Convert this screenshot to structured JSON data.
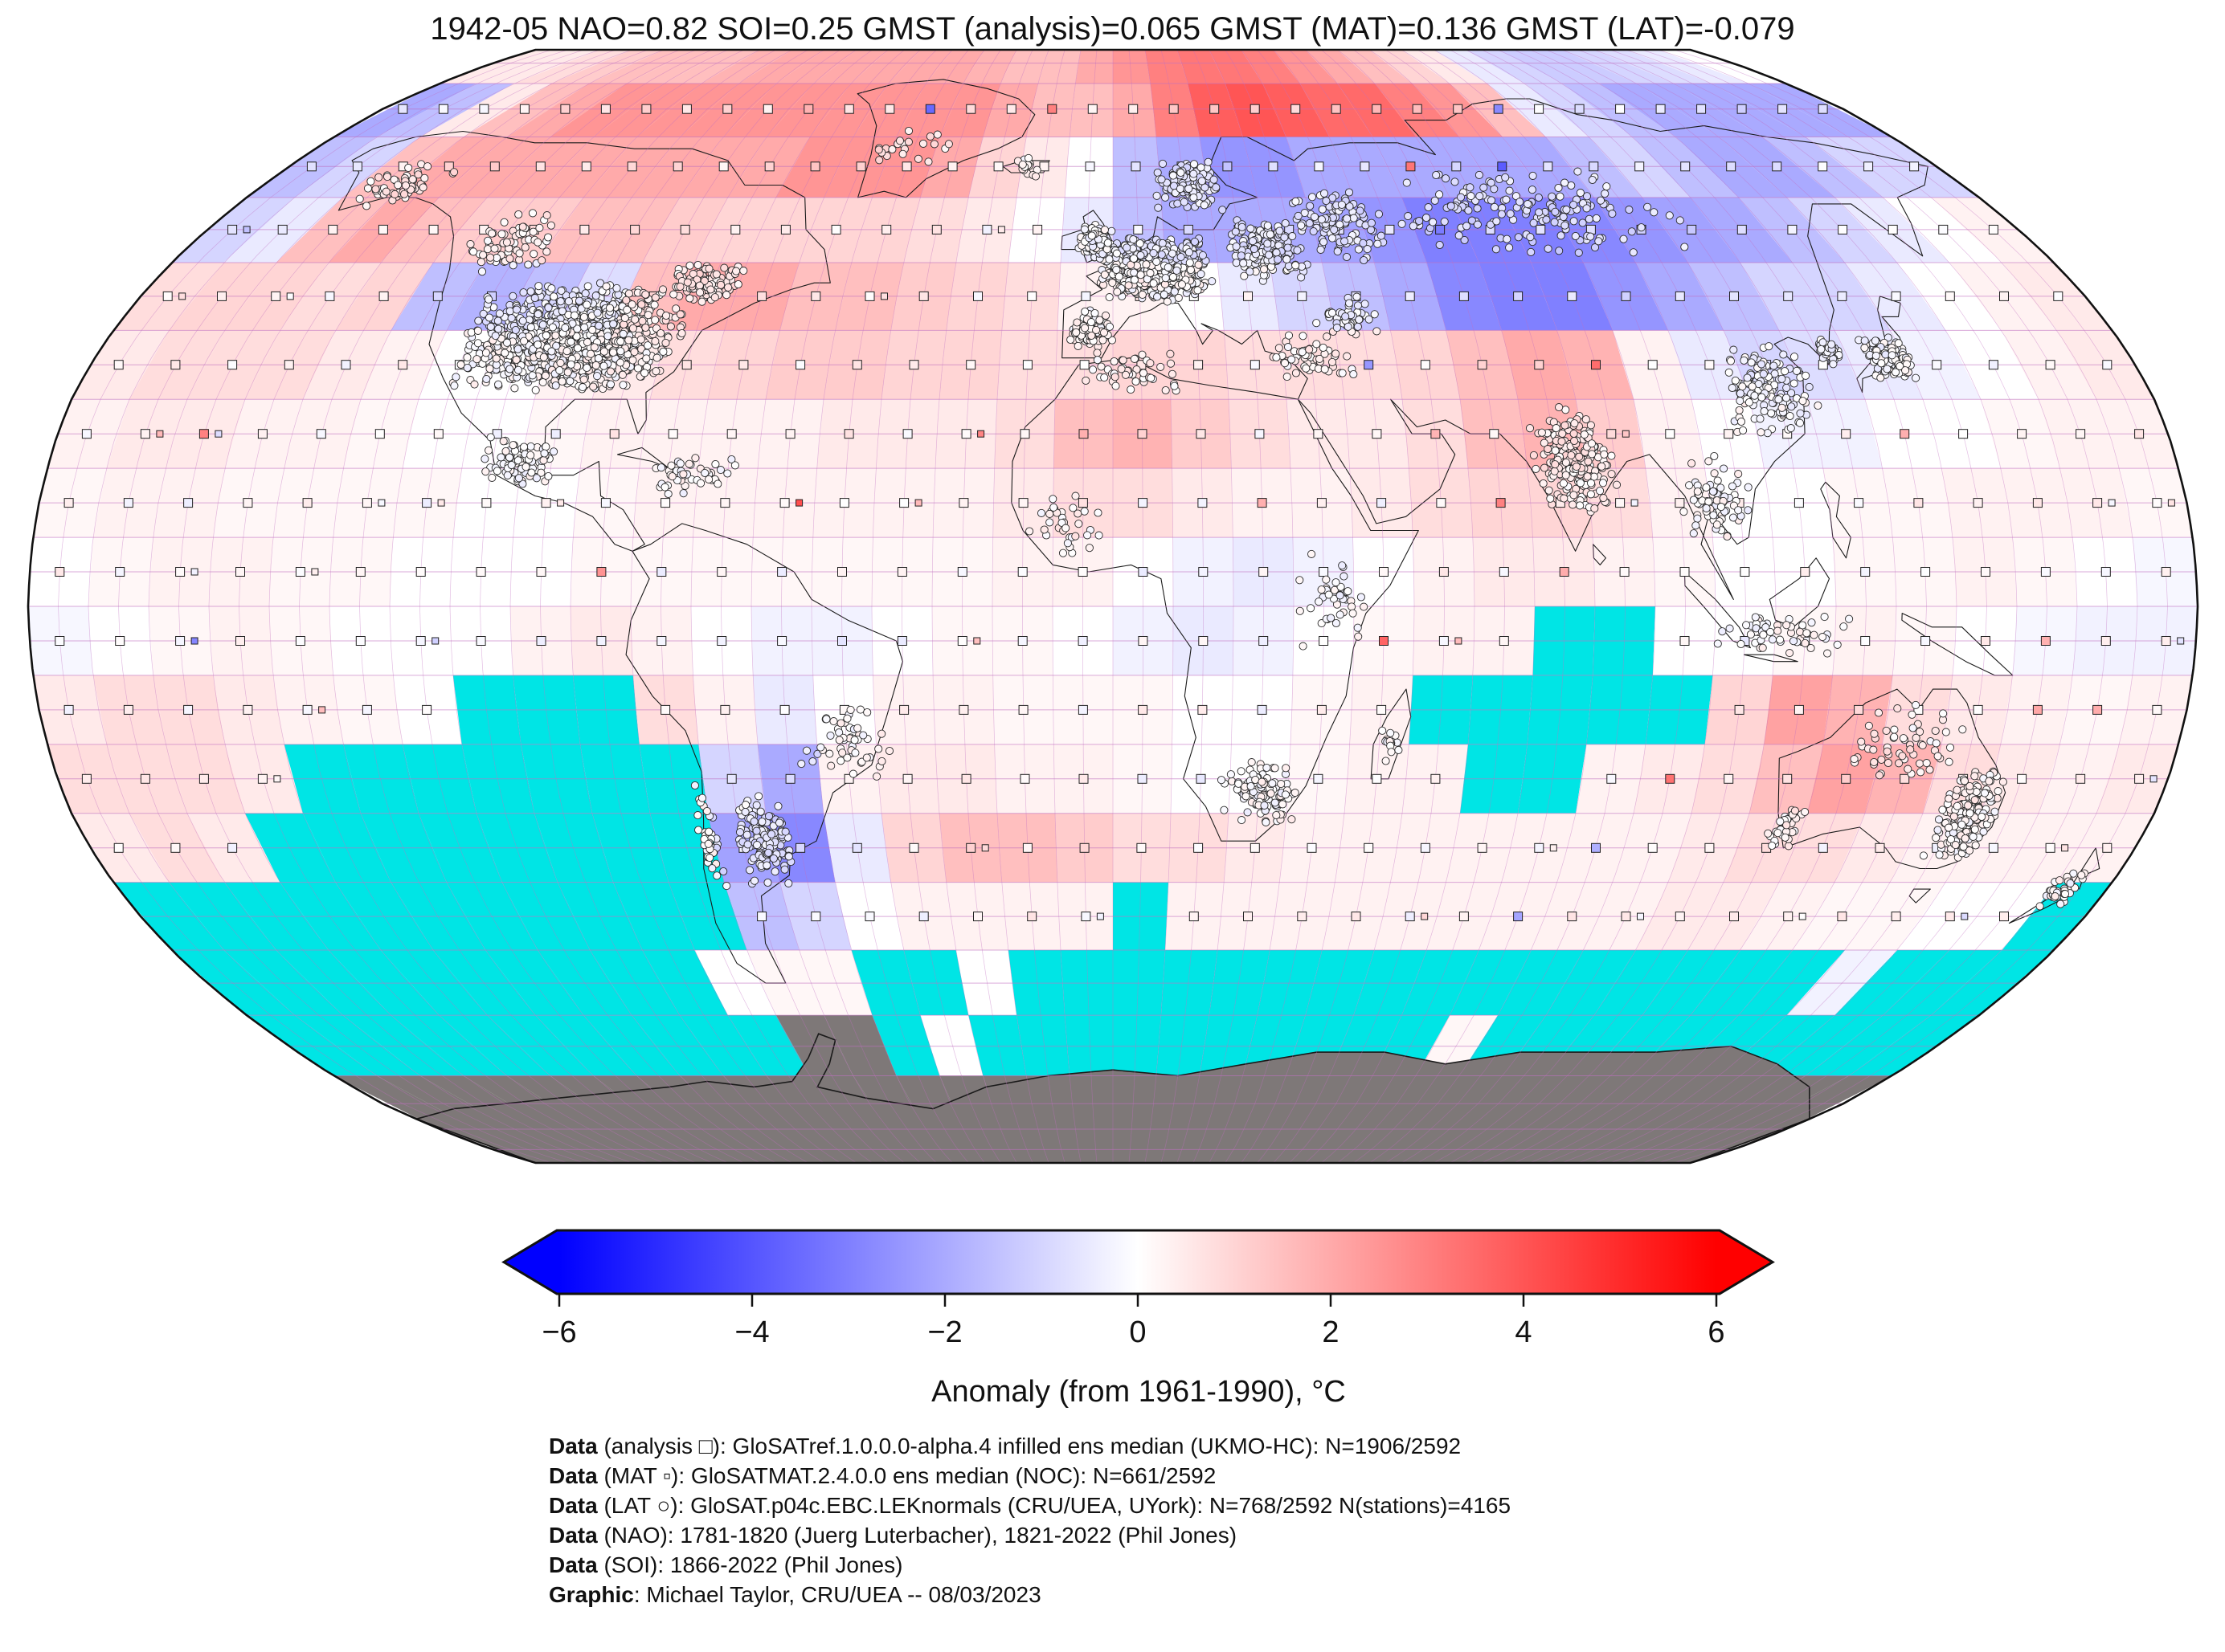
{
  "title": "1942-05 NAO=0.82 SOI=0.25 GMST (analysis)=0.065 GMST (MAT)=0.136 GMST (LAT)=-0.079",
  "colorbar": {
    "label": "Anomaly (from 1961-1990), °C",
    "ticks": [
      -6,
      -4,
      -2,
      0,
      2,
      4,
      6
    ],
    "vmin": -6,
    "vmax": 6,
    "color_negative": "#0000ff",
    "color_zero": "#ffffff",
    "color_positive": "#ff0000",
    "color_missing": "#00e5e5",
    "color_antarctica": "#7e7878"
  },
  "caption": {
    "lines": [
      {
        "bold": "Data",
        "rest": " (analysis □): GloSATref.1.0.0.0-alpha.4 infilled ens median (UKMO-HC): N=1906/2592"
      },
      {
        "bold": "Data",
        "rest": " (MAT ▫): GloSATMAT.2.4.0.0 ens median (NOC): N=661/2592"
      },
      {
        "bold": "Data",
        "rest": " (LAT ○): GloSAT.p04c.EBC.LEKnormals (CRU/UEA, UYork): N=768/2592 N(stations)=4165"
      },
      {
        "bold": "Data",
        "rest": " (NAO): 1781-1820 (Juerg Luterbacher), 1821-2022 (Phil Jones)"
      },
      {
        "bold": "Data",
        "rest": " (SOI): 1866-2022 (Phil Jones)"
      },
      {
        "bold": "Graphic",
        "rest": ": Michael Taylor, CRU/UEA -- 08/03/2023"
      }
    ]
  },
  "chart_data": {
    "type": "heatmap",
    "subtype": "global-temperature-anomaly-map",
    "projection": "robinson",
    "period": "1942-05",
    "indices": {
      "NAO": 0.82,
      "SOI": 0.25
    },
    "gmst": {
      "analysis": 0.065,
      "MAT": 0.136,
      "LAT": -0.079
    },
    "counts": {
      "analysis": "1906/2592",
      "MAT": "661/2592",
      "LAT": "768/2592",
      "stations": 4165
    },
    "graticule_deg": 5,
    "colors": {
      "graticule": "#c06fc0",
      "coastline": "#1a1a1a",
      "outline": "#111111"
    },
    "anomaly_grid": {
      "lat_start": 85,
      "lat_step": -10,
      "lon_start": -175,
      "lon_step": 10,
      "missing_code": "m",
      "antarctica_code": "g",
      "rows": [
        [
          0.5,
          0.5,
          0.8,
          1.2,
          1.5,
          1.5,
          1.5,
          1.8,
          2,
          2,
          2,
          2,
          2,
          2,
          1.8,
          1.5,
          1.5,
          2,
          2.5,
          3,
          3.2,
          3.2,
          3,
          2.5,
          2,
          1.5,
          1,
          0.5,
          -0.5,
          -1,
          -1.2,
          -1.2,
          -1,
          -0.8,
          -0.5,
          0
        ],
        [
          -2,
          -1.5,
          0.5,
          1.5,
          2,
          2.5,
          2.5,
          2.5,
          2.5,
          2.5,
          2.5,
          2.5,
          2.5,
          2.5,
          2.5,
          2,
          1.5,
          1.5,
          2,
          3,
          3.8,
          4,
          3.8,
          3.5,
          3.5,
          3,
          2.5,
          1.5,
          -0.5,
          -1,
          -1.5,
          -2,
          -2,
          -2,
          -2,
          -2
        ],
        [
          -1.5,
          -1,
          1.5,
          2,
          2,
          2,
          2,
          2,
          2,
          2,
          2,
          2.5,
          2.5,
          2.5,
          2,
          1,
          0.5,
          0,
          -1.5,
          -2,
          -2.5,
          -2.5,
          -2,
          -2,
          -2,
          -2,
          -2,
          -2,
          -1.5,
          -1,
          -1.5,
          -2,
          -2,
          -1.5,
          -1,
          -1
        ],
        [
          -1,
          -0.5,
          1.5,
          2,
          1.5,
          1.2,
          1.2,
          1.5,
          1.5,
          1.2,
          1,
          1,
          1,
          1,
          0.8,
          0.5,
          0,
          -0.5,
          -1.5,
          -2,
          -2,
          -2,
          -2.2,
          -2.5,
          -3,
          -3,
          -3,
          -2.8,
          -2.5,
          -2.2,
          -2,
          -1.5,
          -1,
          -0.5,
          0,
          0.3
        ],
        [
          0.8,
          1,
          1,
          0.8,
          1,
          -1.5,
          -1.8,
          -1.5,
          -0.8,
          1.5,
          2,
          2,
          1.5,
          1.5,
          1.2,
          1,
          0.8,
          0.3,
          0.3,
          0,
          -0.5,
          -1,
          -1.5,
          -2,
          -2.8,
          -3,
          -3,
          -2.5,
          -2,
          -1.5,
          -1,
          -1,
          -0.5,
          0,
          0.3,
          0.5
        ],
        [
          0.5,
          0.8,
          0.8,
          0.8,
          0.5,
          0.3,
          0,
          0,
          0.3,
          0.5,
          0.8,
          1,
          1.2,
          1.2,
          1,
          1,
          0.8,
          0.8,
          1,
          1,
          0.8,
          0.8,
          0.8,
          1,
          1.5,
          2,
          1.8,
          0.3,
          -0.5,
          -1,
          -0.8,
          -0.5,
          -0.3,
          0,
          0.3,
          0.5
        ],
        [
          0.3,
          0.5,
          0.5,
          0.3,
          0.3,
          0.2,
          0,
          0,
          0.2,
          0.3,
          0.3,
          0.3,
          0.3,
          0.5,
          0.5,
          0.5,
          0.8,
          1.5,
          1.8,
          1.2,
          0.8,
          0.5,
          0.5,
          0.8,
          1.5,
          1.8,
          1.2,
          0.3,
          0,
          -0.3,
          -0.3,
          0,
          0,
          0.2,
          0.3,
          0.3
        ],
        [
          0.2,
          0.3,
          0.3,
          0.2,
          0.2,
          0.2,
          0.2,
          0,
          0,
          0.2,
          0.3,
          0.3,
          0.3,
          0.3,
          0.3,
          0.3,
          0.5,
          0.8,
          0.8,
          0.5,
          0.3,
          0.3,
          0.5,
          0.8,
          1,
          1,
          0.8,
          0.3,
          0,
          0,
          0.2,
          0.2,
          0.3,
          0.3,
          0.3,
          0.2
        ],
        [
          0,
          0.2,
          0.3,
          0.3,
          0.2,
          0.2,
          0,
          0,
          0,
          0.2,
          0.2,
          0.2,
          0.2,
          0.2,
          0.2,
          0.2,
          0.3,
          0.3,
          0,
          -0.3,
          -0.5,
          -0.3,
          0,
          0.3,
          0.5,
          0.5,
          0.3,
          0.2,
          0,
          0,
          0.2,
          0.2,
          0.3,
          0.2,
          0,
          -0.2
        ],
        [
          -0.2,
          0,
          0.2,
          0.3,
          0.2,
          0,
          0,
          0,
          0.3,
          0.5,
          0.3,
          0,
          -0.3,
          -0.3,
          0,
          0.2,
          0.2,
          0,
          -0.3,
          -0.5,
          -0.3,
          0,
          0.2,
          0.3,
          0.3,
          "m",
          "m",
          0,
          0,
          0.2,
          0.3,
          0.2,
          0,
          -0.2,
          -0.3,
          -0.3
        ],
        [
          0.5,
          0.8,
          0.8,
          0.5,
          0.3,
          0.2,
          0,
          "m",
          "m",
          "m",
          0.8,
          0.3,
          -0.5,
          0,
          0.3,
          0.3,
          0.2,
          0.2,
          0.2,
          0,
          0,
          0.2,
          0.3,
          "m",
          "m",
          "m",
          "m",
          "m",
          1,
          2.2,
          1.8,
          0.8,
          0.5,
          0.3,
          0.2,
          0.3
        ],
        [
          0.8,
          0.8,
          0.8,
          0.5,
          "m",
          "m",
          "m",
          "m",
          "m",
          "m",
          "m",
          -1,
          -2,
          0.3,
          0.5,
          0.5,
          0.3,
          0.3,
          0.2,
          0,
          0,
          0.2,
          0.3,
          0.3,
          "m",
          "m",
          0.3,
          0.5,
          0.8,
          1.5,
          2.2,
          1.8,
          0.8,
          0.5,
          0.3,
          0.5
        ],
        [
          0.5,
          0.8,
          0.5,
          "m",
          "m",
          "m",
          "m",
          "m",
          "m",
          "m",
          "m",
          -2.2,
          -2.8,
          -0.5,
          1,
          1.5,
          1.5,
          1.2,
          0.8,
          0.8,
          0.5,
          0.3,
          0.3,
          0.3,
          0.3,
          0.3,
          0.3,
          0.3,
          0.5,
          0.8,
          0.8,
          0.5,
          0.3,
          0.3,
          0.3,
          0.3
        ],
        [
          "m",
          "m",
          "m",
          "m",
          "m",
          "m",
          "m",
          "m",
          "m",
          "m",
          "m",
          -1.5,
          -1,
          0,
          0.3,
          0.3,
          0.3,
          0.3,
          "m",
          0.3,
          0.3,
          0.3,
          0.3,
          0.3,
          0.3,
          0.3,
          0.3,
          0.3,
          0.5,
          0.5,
          0.3,
          0.2,
          0.2,
          0,
          0,
          "m"
        ],
        [
          "m",
          "m",
          "m",
          "m",
          "m",
          "m",
          "m",
          "m",
          "m",
          "m",
          0,
          0.2,
          0.2,
          "m",
          "m",
          0,
          "m",
          "m",
          "m",
          "m",
          "m",
          "m",
          "m",
          "m",
          "m",
          "m",
          "m",
          "m",
          "m",
          "m",
          "m",
          "m",
          -0.3,
          "m",
          "m",
          "m"
        ],
        [
          "m",
          "m",
          "m",
          "m",
          "m",
          "m",
          "m",
          "m",
          "m",
          "m",
          "m",
          "g",
          "g",
          "m",
          0,
          "m",
          "m",
          "m",
          "m",
          "m",
          "m",
          "m",
          "m",
          "m",
          "m",
          0.2,
          "m",
          "m",
          "m",
          "m",
          "m",
          "m",
          "m",
          "m",
          "m",
          "m"
        ],
        [
          "g",
          "g",
          "g",
          "g",
          "g",
          "g",
          "g",
          "g",
          "g",
          "g",
          "g",
          "g",
          "g",
          "g",
          "g",
          "g",
          "g",
          "g",
          "g",
          "g",
          "g",
          "g",
          "g",
          "g",
          "g",
          "g",
          "g",
          "g",
          "g",
          "g",
          "g",
          "g",
          "g",
          "g",
          "g",
          "g"
        ],
        [
          "g",
          "g",
          "g",
          "g",
          "g",
          "g",
          "g",
          "g",
          "g",
          "g",
          "g",
          "g",
          "g",
          "g",
          "g",
          "g",
          "g",
          "g",
          "g",
          "g",
          "g",
          "g",
          "g",
          "g",
          "g",
          "g",
          "g",
          "g",
          "g",
          "g",
          "g",
          "g",
          "g",
          "g",
          "g",
          "g"
        ]
      ]
    },
    "station_clusters": {
      "fields": [
        "region",
        "lon",
        "lat",
        "lon_spread",
        "lat_spread",
        "count"
      ],
      "items": [
        [
          "us",
          -97,
          39,
          20,
          8,
          1200
        ],
        [
          "canada-east",
          -76,
          47,
          7,
          3,
          110
        ],
        [
          "canada-west",
          -118,
          53,
          10,
          5,
          70
        ],
        [
          "alaska",
          -150,
          62,
          9,
          4,
          60
        ],
        [
          "mexico",
          -100,
          21,
          7,
          4,
          80
        ],
        [
          "caribbean",
          -72,
          19,
          9,
          3,
          45
        ],
        [
          "brazil",
          -45,
          -20,
          8,
          6,
          55
        ],
        [
          "chile",
          -71,
          -33,
          2,
          8,
          40
        ],
        [
          "argentina",
          -61,
          -34,
          5,
          7,
          150
        ],
        [
          "europe",
          8,
          49,
          11,
          5,
          650
        ],
        [
          "uk-ireland",
          -3,
          53,
          4,
          3,
          120
        ],
        [
          "iberia",
          -4,
          40,
          4,
          3,
          80
        ],
        [
          "scandinavia",
          16,
          62,
          7,
          4,
          150
        ],
        [
          "east-europe",
          30,
          52,
          8,
          5,
          170
        ],
        [
          "west-russia",
          45,
          56,
          10,
          6,
          110
        ],
        [
          "siberia",
          85,
          58,
          30,
          7,
          170
        ],
        [
          "caucasus",
          42,
          42,
          6,
          3,
          50
        ],
        [
          "middle-east",
          35,
          36,
          8,
          4,
          55
        ],
        [
          "north-africa",
          3,
          34,
          10,
          3,
          45
        ],
        [
          "west-africa",
          -8,
          12,
          8,
          5,
          35
        ],
        [
          "east-africa",
          36,
          2,
          6,
          8,
          40
        ],
        [
          "south-africa",
          25,
          -27,
          7,
          5,
          120
        ],
        [
          "madagascar",
          47,
          -20,
          2,
          3,
          14
        ],
        [
          "india",
          78,
          21,
          7,
          8,
          240
        ],
        [
          "se-asia",
          101,
          15,
          6,
          7,
          80
        ],
        [
          "china",
          114,
          31,
          8,
          7,
          150
        ],
        [
          "japan",
          137,
          36,
          4,
          3,
          180
        ],
        [
          "korea",
          127,
          37,
          2,
          2,
          35
        ],
        [
          "indonesia",
          112,
          -4,
          14,
          3,
          55
        ],
        [
          "australia-east",
          148,
          -30,
          5,
          7,
          240
        ],
        [
          "australia-north",
          134,
          -20,
          10,
          6,
          60
        ],
        [
          "australia-sw",
          117,
          -32,
          3,
          3,
          35
        ],
        [
          "new-zealand",
          172,
          -41,
          3,
          3,
          40
        ],
        [
          "greenland-coast",
          -45,
          68,
          10,
          4,
          22
        ],
        [
          "iceland",
          -19,
          65,
          3,
          2,
          18
        ]
      ]
    }
  }
}
